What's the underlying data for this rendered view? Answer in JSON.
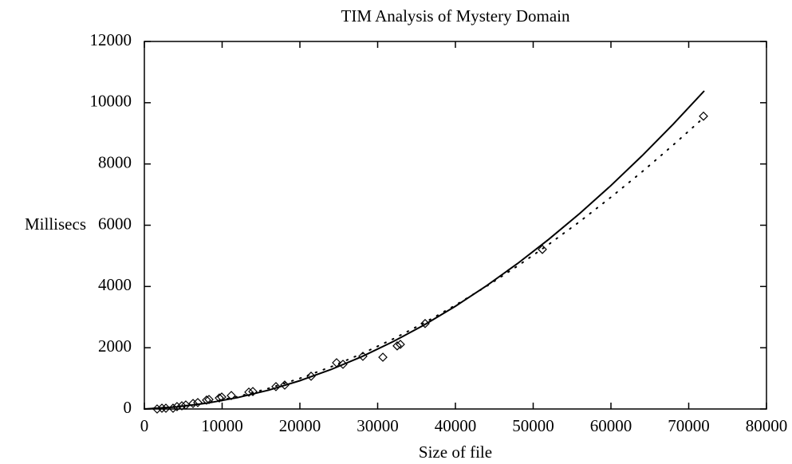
{
  "chart_data": {
    "type": "scatter",
    "title": "TIM Analysis of Mystery Domain",
    "x_label": "Size of file",
    "y_label": "Millisecs",
    "xlim": [
      0,
      80000
    ],
    "ylim": [
      0,
      12000
    ],
    "xticks": [
      0,
      10000,
      20000,
      30000,
      40000,
      50000,
      60000,
      70000,
      80000
    ],
    "yticks": [
      0,
      2000,
      4000,
      6000,
      8000,
      10000,
      12000
    ],
    "series": [
      {
        "style": "marker",
        "color": "#000000",
        "x": [
          1640,
          2260,
          2770,
          3690,
          4200,
          4820,
          5330,
          6260,
          6870,
          8000,
          8310,
          9640,
          9950,
          11180,
          13440,
          13950,
          16920,
          18050,
          21440,
          24720,
          25540,
          28100,
          30670,
          32510,
          32920,
          36100,
          51180,
          71900
        ],
        "values": [
          0,
          26,
          26,
          26,
          78,
          104,
          130,
          180,
          210,
          290,
          310,
          360,
          390,
          440,
          550,
          570,
          730,
          780,
          1070,
          1510,
          1460,
          1720,
          1690,
          2060,
          2110,
          2790,
          5210,
          9560
        ]
      },
      {
        "style": "solid",
        "color": "#000000",
        "x": [
          0,
          4000,
          8000,
          12000,
          16000,
          20000,
          24000,
          28000,
          32000,
          36000,
          40000,
          44000,
          48000,
          52000,
          56000,
          60000,
          64000,
          68000,
          72000
        ],
        "values": [
          0,
          64,
          188,
          373,
          617,
          923,
          1289,
          1714,
          2201,
          2747,
          3355,
          4023,
          4751,
          5540,
          6388,
          7297,
          8267,
          9297,
          10387
        ]
      },
      {
        "style": "dotted",
        "color": "#000000",
        "x": [
          0,
          4000,
          8000,
          12000,
          16000,
          20000,
          24000,
          28000,
          32000,
          36000,
          40000,
          44000,
          48000,
          52000,
          56000,
          60000,
          64000,
          68000,
          72000
        ],
        "values": [
          0,
          59,
          199,
          407,
          675,
          1000,
          1378,
          1808,
          2287,
          2814,
          3390,
          4007,
          4669,
          5376,
          6123,
          6916,
          7745,
          8618,
          9530
        ]
      }
    ]
  }
}
